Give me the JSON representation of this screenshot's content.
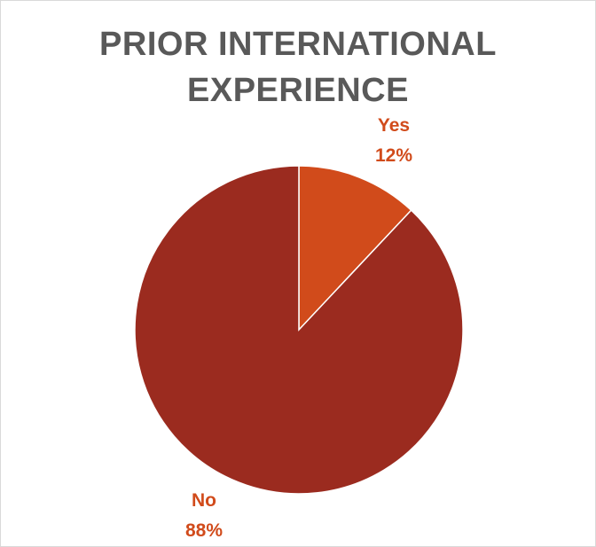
{
  "chart_data": {
    "type": "pie",
    "title": [
      "PRIOR INTERNATIONAL",
      "EXPERIENCE"
    ],
    "slices": [
      {
        "label": "Yes",
        "value": 12,
        "display": "12%",
        "color": "#d14b1b"
      },
      {
        "label": "No",
        "value": 88,
        "display": "88%",
        "color": "#9b2b1f"
      }
    ],
    "legend": "none"
  },
  "colors": {
    "title": "#595959",
    "slice_border": "#ffffff"
  }
}
